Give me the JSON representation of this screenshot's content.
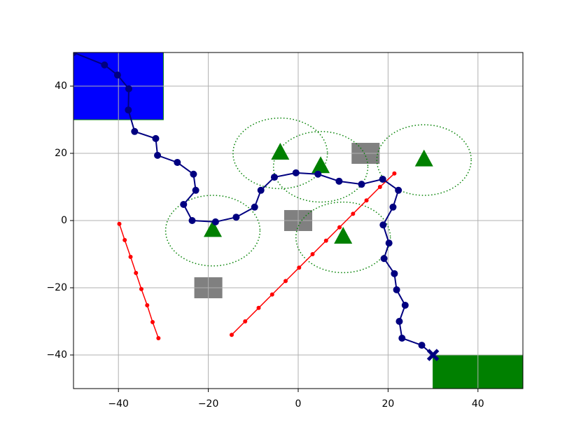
{
  "chart_data": {
    "type": "line",
    "xlim": [
      -50,
      50
    ],
    "ylim": [
      -50,
      50
    ],
    "xticks": [
      {
        "value": -40,
        "label": "−40"
      },
      {
        "value": -20,
        "label": "−20"
      },
      0,
      20,
      40
    ],
    "yticks": [
      {
        "value": -40,
        "label": "−40"
      },
      {
        "value": -20,
        "label": "−20"
      },
      0,
      20,
      40
    ],
    "grid": true,
    "regions": [
      {
        "x": [
          -50,
          -30
        ],
        "y": [
          30,
          50
        ],
        "color": "#0000ff"
      },
      {
        "x": [
          30,
          50
        ],
        "y": [
          -50,
          -40
        ],
        "color": "#008000"
      }
    ],
    "obstacles": {
      "color": "#808080",
      "size": 6,
      "x": [
        0,
        -20,
        15
      ],
      "y": [
        0,
        -20,
        20
      ]
    },
    "threats": {
      "color": "#008000",
      "radius": 10.5,
      "x": [
        -19,
        -4,
        5,
        10,
        28
      ],
      "y": [
        -3,
        20,
        16,
        -5,
        18
      ]
    },
    "series": [
      {
        "color": "#ff0000",
        "x": [
          -39.8,
          -38.6,
          -37.3,
          -36.1,
          -34.9,
          -33.6,
          -32.4,
          -31.1
        ],
        "values": [
          -1,
          -5.8,
          -10.8,
          -15.6,
          -20.4,
          -25.2,
          -30.2,
          -35
        ]
      },
      {
        "color": "#ff0000",
        "x": [
          -14.8,
          -11.8,
          -8.8,
          -5.8,
          -2.8,
          0.2,
          3.2,
          6.2,
          9.2,
          12.2,
          15.2,
          18.2,
          21.4
        ],
        "values": [
          -34,
          -30,
          -26,
          -22,
          -18,
          -14,
          -10,
          -6,
          -2,
          2,
          6,
          10,
          14
        ]
      },
      {
        "color": "#000080",
        "x": [
          -50,
          -43.1,
          -40.2,
          -37.7,
          -37.8,
          -36.4,
          -31.7,
          -31.3,
          -26.9,
          -23.3,
          -22.8,
          -25.5,
          -23.6,
          -18.4,
          -13.8,
          -9.7,
          -8.3,
          -5.3,
          -0.5,
          4.4,
          9.1,
          14.1,
          18.8,
          22.3,
          21.1,
          18.9,
          20.2,
          19.1,
          21.4,
          21.9,
          23.8,
          22.5,
          23.1,
          27.5,
          30
        ],
        "values": [
          50,
          46.3,
          43.3,
          39.2,
          32.9,
          26.5,
          24.4,
          19.4,
          17.3,
          13.8,
          9,
          4.8,
          0,
          -0.4,
          1,
          4,
          9,
          12.9,
          14.2,
          13.8,
          11.7,
          10.8,
          12.3,
          9,
          4,
          -1.3,
          -6.7,
          -11.3,
          -15.8,
          -20.6,
          -25.2,
          -30,
          -35,
          -37.1,
          -40
        ]
      }
    ],
    "end_marker": {
      "x": 30,
      "y": -40,
      "color": "#000080"
    }
  }
}
